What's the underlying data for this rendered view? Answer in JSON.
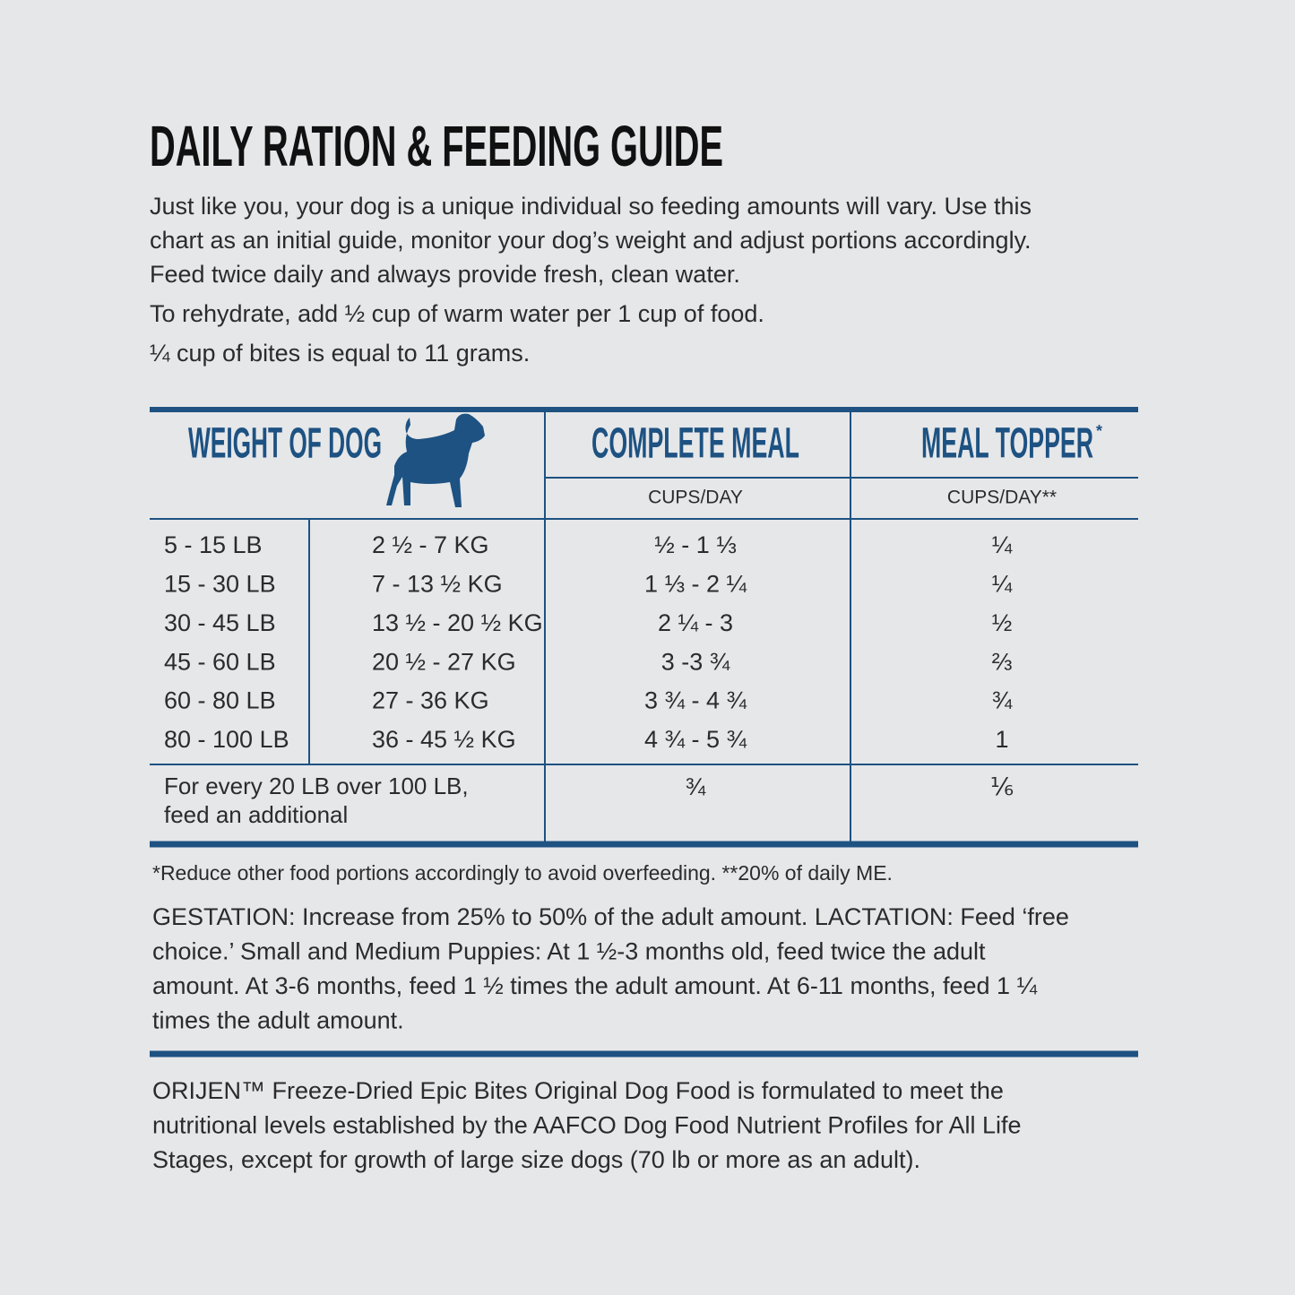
{
  "header": {
    "title": "DAILY RATION & FEEDING GUIDE",
    "intro_lines": [
      "Just like you, your dog is a unique individual so feeding amounts will vary. Use this",
      "chart as an initial guide, monitor your dog’s weight and adjust portions accordingly.",
      "Feed twice daily and always provide fresh, clean water."
    ],
    "rehydrate": "To rehydrate, add ½ cup of warm water per 1 cup of food.",
    "bites": "¼ cup of bites is equal to 11 grams."
  },
  "table": {
    "columns": {
      "weight": "WEIGHT OF DOG",
      "complete": "COMPLETE MEAL",
      "complete_unit": "CUPS/DAY",
      "topper": "MEAL TOPPER",
      "topper_mark": "*",
      "topper_unit": "CUPS/DAY**"
    },
    "rows": [
      [
        "5 - 15 LB",
        "2 ½ - 7 KG",
        "½ - 1 ⅓",
        "¼"
      ],
      [
        "15 - 30 LB",
        "7 - 13 ½ KG",
        "1 ⅓ - 2 ¼",
        "¼"
      ],
      [
        "30 - 45 LB",
        "13 ½ - 20 ½ KG",
        "2 ¼ - 3",
        "½"
      ],
      [
        "45 - 60 LB",
        "20 ½ - 27 KG",
        "3 -3 ¾",
        "⅔"
      ],
      [
        "60 - 80 LB",
        "27 - 36 KG",
        "3 ¾ - 4 ¾",
        "¾"
      ],
      [
        "80 - 100 LB",
        "36 - 45 ½ KG",
        "4 ¾ - 5 ¾",
        "1"
      ]
    ],
    "extra": {
      "label_lines": [
        "For every 20 LB over 100 LB,",
        "feed an additional"
      ],
      "complete": "¾",
      "topper": "⅙"
    }
  },
  "footnote": "*Reduce other food portions accordingly to avoid overfeeding. **20% of daily ME.",
  "gestation_lines": [
    "GESTATION: Increase from 25% to 50% of the adult amount. LACTATION: Feed ‘free",
    "choice.’ Small and Medium Puppies: At 1 ½-3 months old, feed twice the adult",
    "amount. At 3-6 months, feed 1 ½ times the adult amount. At 6-11 months, feed 1 ¼",
    "times the adult amount."
  ],
  "statement_lines": [
    "ORIJEN™ Freeze-Dried Epic Bites Original Dog Food is formulated to meet the",
    "nutritional levels established by the AAFCO Dog Food Nutrient Profiles for All Life",
    "Stages, except for growth of large size dogs (70 lb or more as an adult)."
  ]
}
